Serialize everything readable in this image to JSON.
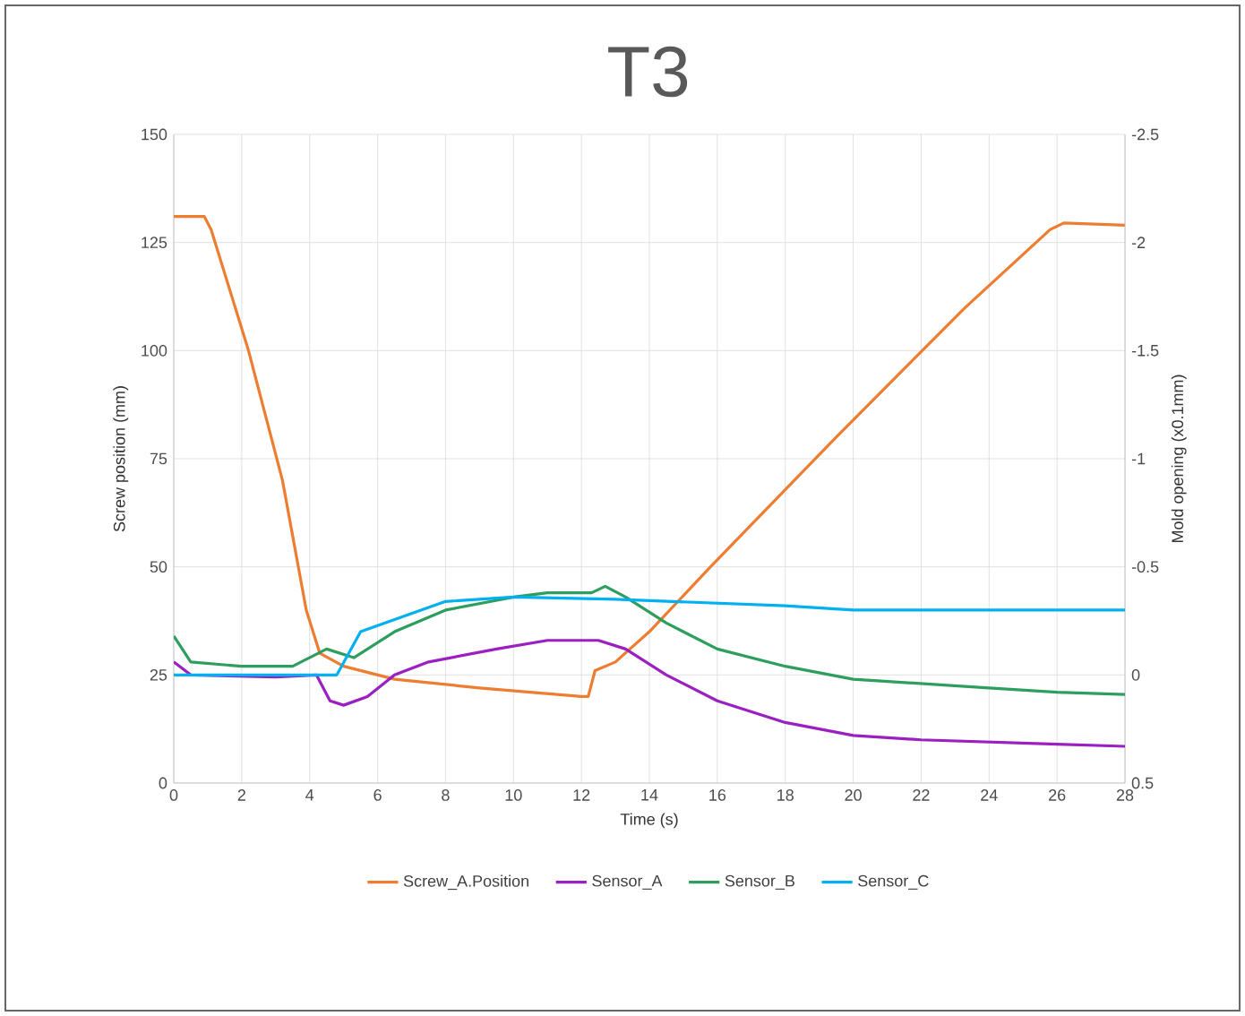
{
  "chart_data": {
    "type": "line",
    "title": "T3",
    "xlabel": "Time (s)",
    "ylabel": "Screw position (mm)",
    "y2label": "Mold opening (x0.1mm)",
    "xlim": [
      0,
      28
    ],
    "xticks": [
      0,
      2,
      4,
      6,
      8,
      10,
      12,
      14,
      16,
      18,
      20,
      22,
      24,
      26,
      28
    ],
    "ylim": [
      0,
      150
    ],
    "yticks": [
      0,
      25,
      50,
      75,
      100,
      125,
      150
    ],
    "y2lim": [
      0.5,
      -2.5
    ],
    "y2ticks": [
      0.5,
      0,
      -0.5,
      -1,
      -1.5,
      -2,
      -2.5
    ],
    "grid": true,
    "legend": "bottom",
    "marker": "none",
    "line_style": "solid",
    "series": [
      {
        "name": "Screw_A.Position",
        "color": "#ed7d31",
        "x": [
          0,
          0.9,
          1.1,
          2.2,
          3.2,
          3.9,
          4.3,
          5,
          6.5,
          9,
          12,
          12.2,
          12.4,
          13,
          14,
          15.8,
          19.5,
          23.3,
          25.8,
          26.2,
          28
        ],
        "values": [
          131,
          131,
          128,
          100,
          70,
          40,
          30,
          27,
          24,
          22,
          20,
          20,
          26,
          28,
          35,
          50,
          80,
          110,
          128,
          129.5,
          129
        ]
      },
      {
        "name": "Sensor_A",
        "color": "#9b1fc1",
        "axis": "y2",
        "x": [
          0,
          0.5,
          3,
          4.2,
          4.6,
          5,
          5.7,
          6.5,
          7.5,
          9.5,
          11,
          12.5,
          13.3,
          14.5,
          16,
          18,
          20,
          22,
          26,
          28
        ],
        "values": [
          -0.06,
          0,
          0.01,
          0,
          0.12,
          0.14,
          0.1,
          0,
          -0.06,
          -0.12,
          -0.16,
          -0.16,
          -0.12,
          0,
          0.12,
          0.22,
          0.28,
          0.3,
          0.32,
          0.33
        ]
      },
      {
        "name": "Sensor_B",
        "color": "#2e9e5e",
        "axis": "y2",
        "x": [
          0,
          0.5,
          2,
          3.5,
          4.5,
          5.3,
          6.5,
          8,
          10,
          11,
          12.3,
          12.7,
          13.3,
          14.5,
          16,
          18,
          20,
          24,
          26,
          28
        ],
        "values": [
          -0.18,
          -0.06,
          -0.04,
          -0.04,
          -0.12,
          -0.08,
          -0.2,
          -0.3,
          -0.36,
          -0.38,
          -0.38,
          -0.41,
          -0.36,
          -0.24,
          -0.12,
          -0.04,
          0.02,
          0.06,
          0.08,
          0.09
        ]
      },
      {
        "name": "Sensor_C",
        "color": "#00b0f0",
        "axis": "y2",
        "x": [
          0,
          4.8,
          5.5,
          8,
          10,
          13,
          18,
          20,
          28
        ],
        "values": [
          0,
          0,
          -0.2,
          -0.34,
          -0.36,
          -0.35,
          -0.32,
          -0.3,
          -0.3
        ]
      }
    ]
  }
}
